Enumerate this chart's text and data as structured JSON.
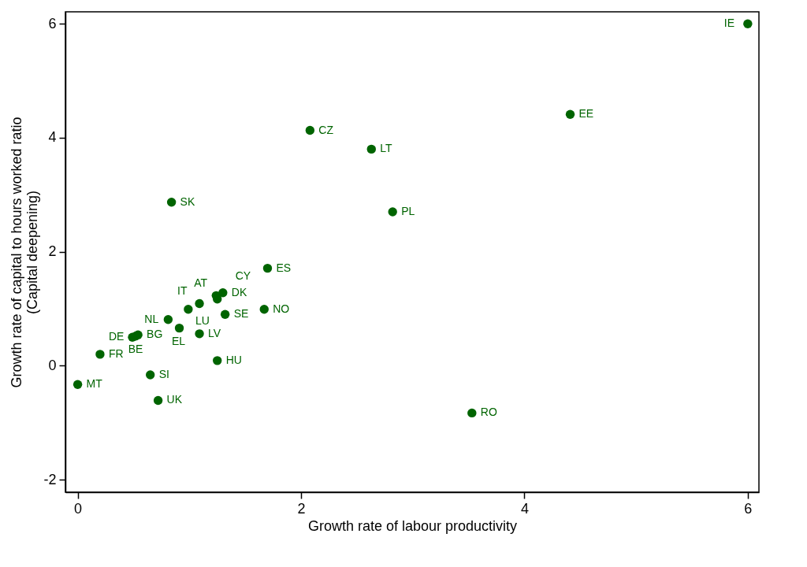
{
  "chart_data": {
    "type": "scatter",
    "xlabel": "Growth rate of labour productivity",
    "ylabel": "Growth rate of capital to hours worked ratio\n(Capital deepening)",
    "x": [
      6.0,
      4.41,
      2.08,
      2.63,
      2.82,
      0.84,
      1.7,
      1.67,
      1.32,
      1.3,
      1.24,
      1.25,
      1.09,
      0.99,
      0.81,
      0.91,
      1.09,
      0.54,
      0.52,
      0.49,
      0.2,
      1.25,
      0.65,
      0.0,
      0.72,
      3.53
    ],
    "series": [
      {
        "color": "#006400",
        "values": [
          6.0,
          4.41,
          4.13,
          3.8,
          2.7,
          2.87,
          1.71,
          0.99,
          0.9,
          1.28,
          1.23,
          1.17,
          1.09,
          0.99,
          0.81,
          0.66,
          0.56,
          0.54,
          0.52,
          0.5,
          0.2,
          0.09,
          -0.16,
          -0.33,
          -0.61,
          -0.83
        ],
        "value_labels": [
          "IE",
          "EE",
          "CZ",
          "LT",
          "PL",
          "SK",
          "ES",
          "NO",
          "SE",
          "DK",
          "AT",
          "CY",
          "IT",
          "LU",
          "NL",
          "EL",
          "LV",
          "BG",
          "BE",
          "DE",
          "FR",
          "HU",
          "SI",
          "MT",
          "UK",
          "RO"
        ]
      }
    ],
    "xlim": [
      -0.11,
      6.1
    ],
    "ylim": [
      -2.22,
      6.21
    ],
    "xticks": [
      0,
      2,
      4,
      6
    ],
    "yticks": [
      -2,
      0,
      2,
      4,
      6
    ],
    "grid": false,
    "marker": "circle"
  }
}
